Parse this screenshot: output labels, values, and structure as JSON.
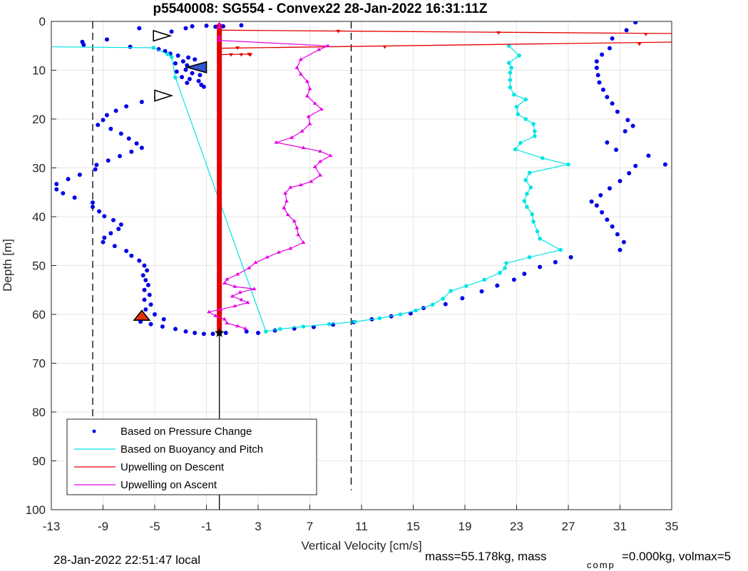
{
  "chart_data": {
    "type": "scatter",
    "title": "p5540008: SG554 - Convex22 28-Jan-2022 16:31:11Z",
    "xlabel": "Vertical Velocity [cm/s]",
    "ylabel": "Depth [m]",
    "xlim": [
      -13,
      35
    ],
    "ylim": [
      0,
      100
    ],
    "y_reversed": true,
    "xticks": [
      -13,
      -9,
      -5,
      -1,
      3,
      7,
      11,
      15,
      19,
      23,
      27,
      31,
      35
    ],
    "yticks": [
      0,
      10,
      20,
      30,
      40,
      50,
      60,
      70,
      80,
      90,
      100
    ],
    "grid": true,
    "legend_position": "bottom-left",
    "reference_lines": {
      "dashed_x": [
        -9.8,
        10.2
      ],
      "solid_x": 0
    },
    "series": [
      {
        "name": "Based on Pressure Change",
        "color": "#0000e6",
        "style": "dots",
        "points": [
          [
            -1,
            0.9
          ],
          [
            -0.3,
            1.1
          ],
          [
            0.3,
            1.0
          ],
          [
            1.7,
            0.8
          ],
          [
            -2.1,
            1.0
          ],
          [
            -2.6,
            1.4
          ],
          [
            -6.2,
            1.4
          ],
          [
            -3.7,
            2.1
          ],
          [
            -8.7,
            3.7
          ],
          [
            -10.6,
            4.2
          ],
          [
            -10.5,
            4.8
          ],
          [
            -6.9,
            5.2
          ],
          [
            -4.7,
            5.7
          ],
          [
            -4.2,
            6.1
          ],
          [
            -3.8,
            6.6
          ],
          [
            -3.2,
            7.0
          ],
          [
            -2.4,
            7.4
          ],
          [
            -1.9,
            7.8
          ],
          [
            -2.8,
            8.2
          ],
          [
            -3.4,
            8.6
          ],
          [
            -2.5,
            9.0
          ],
          [
            -1.7,
            9.4
          ],
          [
            -2.6,
            9.9
          ],
          [
            -3.3,
            10.3
          ],
          [
            -2.1,
            10.6
          ],
          [
            -1.5,
            11.0
          ],
          [
            -2.9,
            11.4
          ],
          [
            -2.3,
            11.8
          ],
          [
            -1.6,
            12.2
          ],
          [
            -2.5,
            12.6
          ],
          [
            -1.4,
            13.0
          ],
          [
            -1.2,
            13.4
          ],
          [
            -4.9,
            15.5
          ],
          [
            -6.0,
            16.5
          ],
          [
            -7.2,
            17.4
          ],
          [
            -8.0,
            18.3
          ],
          [
            -8.7,
            19.2
          ],
          [
            -9.0,
            20.2
          ],
          [
            -9.4,
            21.2
          ],
          [
            -8.4,
            22.0
          ],
          [
            -7.6,
            23.0
          ],
          [
            -7.0,
            24.0
          ],
          [
            -6.4,
            25.0
          ],
          [
            -6.0,
            25.9
          ],
          [
            -6.8,
            26.7
          ],
          [
            -7.7,
            27.6
          ],
          [
            -8.6,
            28.5
          ],
          [
            -9.5,
            29.4
          ],
          [
            -9.6,
            30.3
          ],
          [
            -10.8,
            31.4
          ],
          [
            -11.7,
            32.3
          ],
          [
            -12.6,
            33.3
          ],
          [
            -12.6,
            34.4
          ],
          [
            -12.1,
            35.2
          ],
          [
            -11.2,
            36.1
          ],
          [
            -9.8,
            37.1
          ],
          [
            -9.8,
            38.0
          ],
          [
            -9.3,
            38.9
          ],
          [
            -8.9,
            39.9
          ],
          [
            -8.2,
            40.7
          ],
          [
            -7.6,
            41.6
          ],
          [
            -7.8,
            42.5
          ],
          [
            -8.4,
            43.4
          ],
          [
            -8.9,
            44.3
          ],
          [
            -9.0,
            45.2
          ],
          [
            -8.1,
            46.0
          ],
          [
            -7.2,
            47.0
          ],
          [
            -6.8,
            48.0
          ],
          [
            -6.2,
            49.0
          ],
          [
            -5.8,
            50.0
          ],
          [
            -5.6,
            51.0
          ],
          [
            -5.9,
            52.0
          ],
          [
            -5.7,
            53.0
          ],
          [
            -5.5,
            54.0
          ],
          [
            -5.8,
            55.0
          ],
          [
            -5.4,
            56.0
          ],
          [
            -5.8,
            57.0
          ],
          [
            -5.3,
            58.0
          ],
          [
            -5.7,
            59.0
          ],
          [
            -5.0,
            60.0
          ],
          [
            -4.3,
            61.0
          ],
          [
            -6.1,
            61.5
          ],
          [
            -5.3,
            62.0
          ],
          [
            -4.4,
            62.5
          ],
          [
            -3.4,
            63.0
          ],
          [
            -2.6,
            63.5
          ],
          [
            -1.9,
            63.8
          ],
          [
            -1.2,
            64.0
          ],
          [
            -0.5,
            64.0
          ],
          [
            0.5,
            63.8
          ],
          [
            2.1,
            63.5
          ],
          [
            3.0,
            63.8
          ],
          [
            4.3,
            63.3
          ],
          [
            5.8,
            62.9
          ],
          [
            7.3,
            62.6
          ],
          [
            8.8,
            62.1
          ],
          [
            10.4,
            61.6
          ],
          [
            11.8,
            61.0
          ],
          [
            13.3,
            60.4
          ],
          [
            14.8,
            59.8
          ],
          [
            15.8,
            58.7
          ],
          [
            17.5,
            57.9
          ],
          [
            18.8,
            56.7
          ],
          [
            20.3,
            55.3
          ],
          [
            21.5,
            54.1
          ],
          [
            22.8,
            52.9
          ],
          [
            23.6,
            51.7
          ],
          [
            24.8,
            50.3
          ],
          [
            26.0,
            49.3
          ],
          [
            27.2,
            48.3
          ],
          [
            31.0,
            46.8
          ],
          [
            31.3,
            45.2
          ],
          [
            30.8,
            43.6
          ],
          [
            30.4,
            42.0
          ],
          [
            30.0,
            40.6
          ],
          [
            29.6,
            39.1
          ],
          [
            29.2,
            37.7
          ],
          [
            28.8,
            36.9
          ],
          [
            29.5,
            35.6
          ],
          [
            30.2,
            34.2
          ],
          [
            31.0,
            32.7
          ],
          [
            31.7,
            31.1
          ],
          [
            32.2,
            29.6
          ],
          [
            33.2,
            27.5
          ],
          [
            30.7,
            26.3
          ],
          [
            30.0,
            24.8
          ],
          [
            31.4,
            22.5
          ],
          [
            32.0,
            21.4
          ],
          [
            31.6,
            20.2
          ],
          [
            30.8,
            18.5
          ],
          [
            30.4,
            16.8
          ],
          [
            30.0,
            15.5
          ],
          [
            29.7,
            14.0
          ],
          [
            29.4,
            12.5
          ],
          [
            29.3,
            11.0
          ],
          [
            29.2,
            9.5
          ],
          [
            29.2,
            8.2
          ],
          [
            29.6,
            6.8
          ],
          [
            30.2,
            5.5
          ],
          [
            30.4,
            3.5
          ],
          [
            31.5,
            1.8
          ],
          [
            32.2,
            0.2
          ],
          [
            34.5,
            29.3
          ]
        ]
      },
      {
        "name": "Based on Buoyancy and Pitch",
        "color": "#00e5e5",
        "style": "line-dots",
        "points": [
          [
            -13.5,
            5.2
          ],
          [
            -5.1,
            5.4
          ],
          [
            -4.0,
            6.7
          ],
          [
            -3.7,
            7.3
          ],
          [
            -3.4,
            11.5
          ],
          [
            3.6,
            63.5
          ],
          [
            4.7,
            63.0
          ],
          [
            6.5,
            62.5
          ],
          [
            8.5,
            62.0
          ],
          [
            10.5,
            61.5
          ],
          [
            12.4,
            60.8
          ],
          [
            14.0,
            60.0
          ],
          [
            15.2,
            59.2
          ],
          [
            16.5,
            58.0
          ],
          [
            17.3,
            56.8
          ],
          [
            17.9,
            55.2
          ],
          [
            19.1,
            54.2
          ],
          [
            20.5,
            52.9
          ],
          [
            21.7,
            51.5
          ],
          [
            22.1,
            50.5
          ],
          [
            22.2,
            49.5
          ],
          [
            24.0,
            48.3
          ],
          [
            26.4,
            46.8
          ],
          [
            24.8,
            44.5
          ],
          [
            24.6,
            43.0
          ],
          [
            24.3,
            41.0
          ],
          [
            24.2,
            39.5
          ],
          [
            23.8,
            38.0
          ],
          [
            23.6,
            36.8
          ],
          [
            23.8,
            35.3
          ],
          [
            24.1,
            34.0
          ],
          [
            23.7,
            32.5
          ],
          [
            24.0,
            31.0
          ],
          [
            27.0,
            29.3
          ],
          [
            25.0,
            28.0
          ],
          [
            22.9,
            26.2
          ],
          [
            23.3,
            24.9
          ],
          [
            24.4,
            23.5
          ],
          [
            24.4,
            22.5
          ],
          [
            24.3,
            21.0
          ],
          [
            23.7,
            20.0
          ],
          [
            23.1,
            19.0
          ],
          [
            23.0,
            17.5
          ],
          [
            23.7,
            16.0
          ],
          [
            22.8,
            15.0
          ],
          [
            22.5,
            13.5
          ],
          [
            22.5,
            12.0
          ],
          [
            22.5,
            10.5
          ],
          [
            22.6,
            9.5
          ],
          [
            22.4,
            8.5
          ],
          [
            23.2,
            7.0
          ],
          [
            22.4,
            5.0
          ]
        ]
      },
      {
        "name": "Upwelling on Descent",
        "color": "#e60000",
        "style": "line-triangles",
        "points": [
          [
            0,
            0.8
          ],
          [
            0,
            1.8
          ],
          [
            0,
            2.8
          ],
          [
            0,
            3.8
          ],
          [
            0,
            4.8
          ],
          [
            0,
            5.8
          ],
          [
            0,
            6.8
          ],
          [
            0,
            10
          ],
          [
            0,
            20
          ],
          [
            0,
            30
          ],
          [
            0,
            40
          ],
          [
            0,
            50
          ],
          [
            0,
            60
          ],
          [
            0,
            63.5
          ],
          [
            36,
            2.5
          ],
          [
            36,
            4.2
          ],
          [
            9.2,
            2.0
          ],
          [
            21.6,
            2.3
          ],
          [
            33,
            2.6
          ],
          [
            12.8,
            5.2
          ],
          [
            32.5,
            4.6
          ],
          [
            1.4,
            5.4
          ],
          [
            0.9,
            6.8
          ],
          [
            1.7,
            6.8
          ],
          [
            2.3,
            6.7
          ],
          [
            2.4,
            6.8
          ]
        ]
      },
      {
        "name": "Upwelling on Ascent",
        "color": "#e600e6",
        "style": "line-triangles",
        "points": [
          [
            0,
            0.5
          ],
          [
            0,
            1.2
          ],
          [
            0,
            3.2
          ],
          [
            0,
            3.9
          ],
          [
            8.4,
            5.0
          ],
          [
            7.7,
            5.8
          ],
          [
            6.3,
            7.8
          ],
          [
            6.0,
            9.5
          ],
          [
            6.3,
            10.8
          ],
          [
            6.8,
            12.3
          ],
          [
            7.0,
            13.8
          ],
          [
            6.8,
            15.3
          ],
          [
            7.4,
            16.8
          ],
          [
            7.9,
            18.0
          ],
          [
            6.9,
            19.5
          ],
          [
            7.0,
            21.0
          ],
          [
            6.4,
            22.5
          ],
          [
            5.6,
            23.8
          ],
          [
            4.4,
            24.8
          ],
          [
            6.5,
            25.9
          ],
          [
            7.8,
            26.6
          ],
          [
            8.6,
            27.5
          ],
          [
            7.8,
            28.7
          ],
          [
            7.4,
            29.8
          ],
          [
            7.8,
            31.5
          ],
          [
            7.1,
            32.8
          ],
          [
            6.3,
            33.5
          ],
          [
            5.5,
            34.0
          ],
          [
            5.1,
            35.2
          ],
          [
            5.2,
            36.8
          ],
          [
            5.0,
            38.2
          ],
          [
            5.3,
            39.6
          ],
          [
            5.8,
            40.9
          ],
          [
            6.0,
            42.3
          ],
          [
            6.1,
            43.7
          ],
          [
            6.5,
            45.3
          ],
          [
            5.5,
            46.5
          ],
          [
            4.6,
            47.3
          ],
          [
            3.7,
            48.3
          ],
          [
            2.8,
            49.4
          ],
          [
            2.3,
            50.5
          ],
          [
            1.4,
            51.8
          ],
          [
            0.6,
            52.8
          ],
          [
            0.4,
            53.6
          ],
          [
            1.2,
            54.3
          ],
          [
            2.7,
            54.8
          ],
          [
            1.6,
            55.5
          ],
          [
            1.0,
            56.3
          ],
          [
            1.7,
            57.0
          ],
          [
            2.2,
            57.6
          ],
          [
            1.2,
            58.3
          ],
          [
            0.1,
            59.0
          ],
          [
            -0.8,
            59.5
          ],
          [
            -0.3,
            60.3
          ],
          [
            0.4,
            61.0
          ],
          [
            0.6,
            61.8
          ],
          [
            1.4,
            62.4
          ],
          [
            2.0,
            62.9
          ]
        ]
      }
    ]
  },
  "footer": {
    "local_time": "28-Jan-2022 22:51:47 local",
    "mass_text": "mass=55.178kg, mass",
    "mass_sub": "comp",
    "mass_tail": "=0.000kg, volmax=5"
  }
}
